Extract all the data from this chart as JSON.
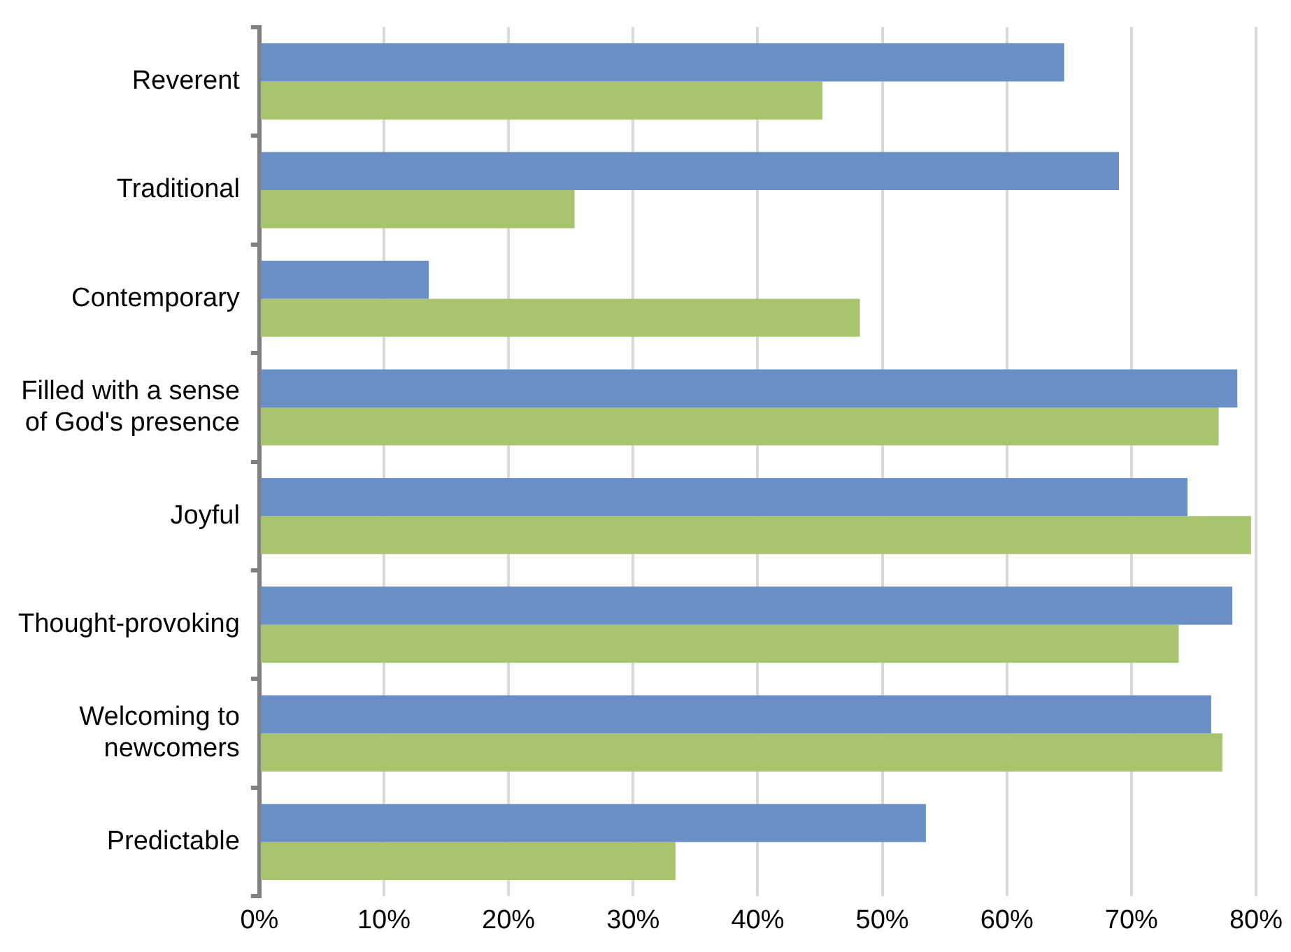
{
  "chart_data": {
    "type": "bar",
    "orientation": "horizontal",
    "categories": [
      "Reverent",
      "Traditional",
      "Contemporary",
      "Filled with a sense of God's presence",
      "Joyful",
      "Thought-provoking",
      "Welcoming to newcomers",
      "Predictable"
    ],
    "series": [
      {
        "color": "#6a8fc7",
        "values": [
          64.6,
          69,
          13.6,
          78.5,
          74.5,
          78.1,
          76.4,
          53.5
        ]
      },
      {
        "color": "#a9c46f",
        "values": [
          45.2,
          25.3,
          48.2,
          77,
          79.6,
          73.8,
          77.3,
          33.4
        ]
      }
    ],
    "xlim": [
      0,
      80
    ],
    "xticks": [
      {
        "value": 0,
        "label": "0%"
      },
      {
        "value": 10,
        "label": "10%"
      },
      {
        "value": 20,
        "label": "20%"
      },
      {
        "value": 30,
        "label": "30%"
      },
      {
        "value": 40,
        "label": "40%"
      },
      {
        "value": 50,
        "label": "50%"
      },
      {
        "value": 60,
        "label": "60%"
      },
      {
        "value": 70,
        "label": "70%"
      },
      {
        "value": 80,
        "label": "80%"
      }
    ],
    "grid": "x",
    "legend": false
  }
}
